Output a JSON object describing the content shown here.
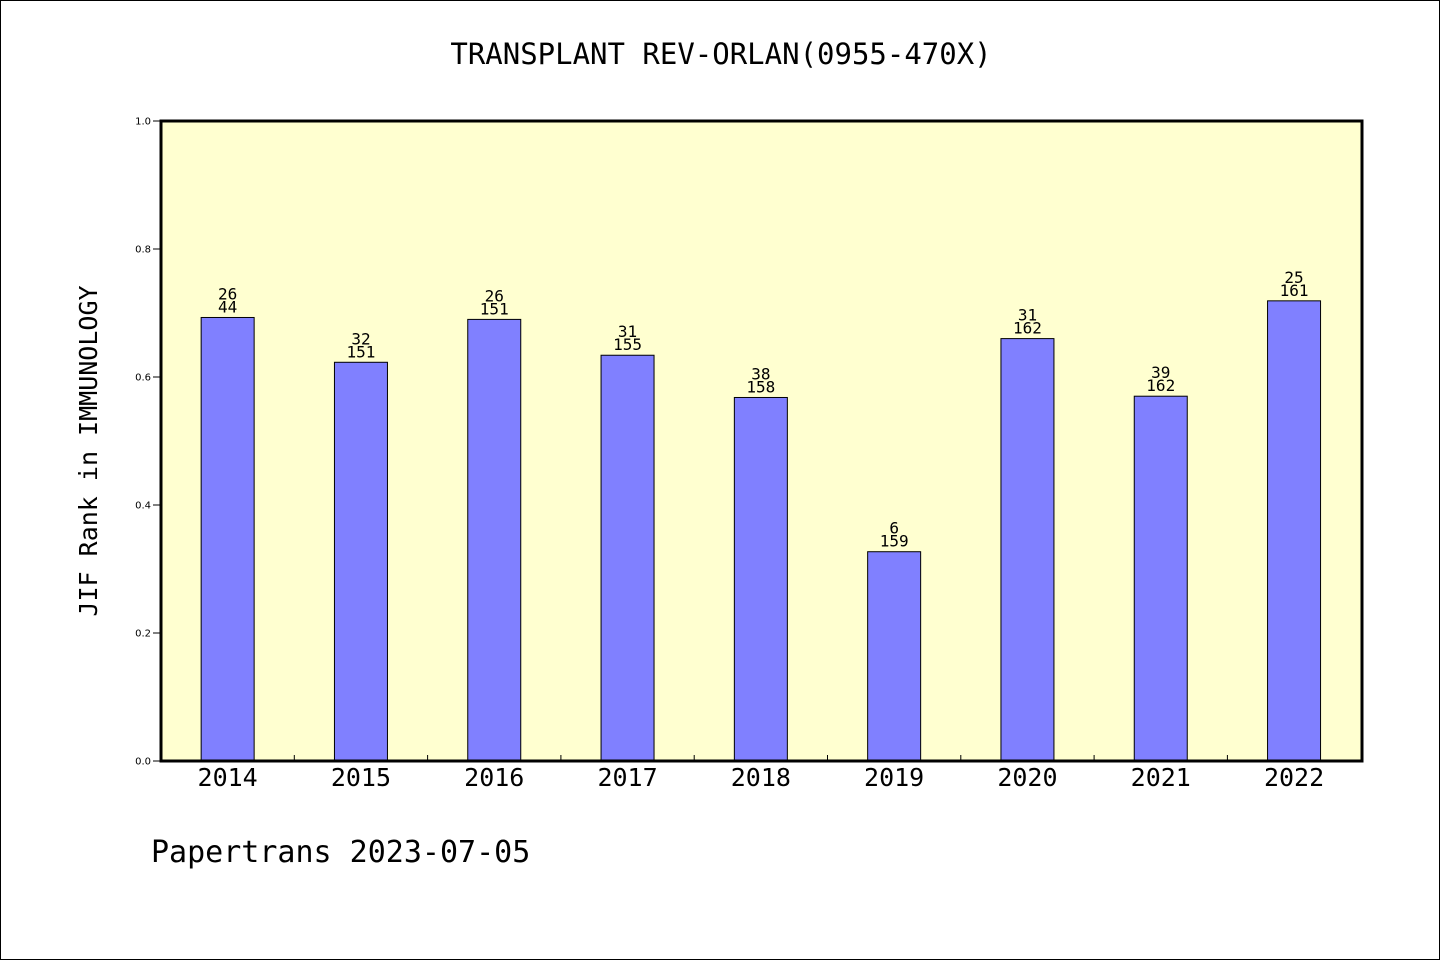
{
  "chart_data": {
    "type": "bar",
    "title": "TRANSPLANT REV-ORLAN(0955-470X)",
    "ylabel": "JIF Rank in IMMUNOLOGY",
    "xlabel": "",
    "ylim": [
      0,
      1.0
    ],
    "yticks": [
      "0.0",
      "0.2",
      "0.4",
      "0.6",
      "0.8",
      "1.0"
    ],
    "grid": false,
    "categories": [
      "2014",
      "2015",
      "2016",
      "2017",
      "2018",
      "2019",
      "2020",
      "2021",
      "2022"
    ],
    "values": [
      0.693,
      0.623,
      0.69,
      0.634,
      0.568,
      0.327,
      0.66,
      0.57,
      0.719
    ],
    "label_top": [
      "26",
      "32",
      "26",
      "31",
      "38",
      "6",
      "31",
      "39",
      "25"
    ],
    "label_bottom": [
      "44",
      "151",
      "151",
      "155",
      "158",
      "159",
      "162",
      "162",
      "161"
    ],
    "colors": {
      "bar": "#8080ff",
      "plot_bg": "#ffffd0",
      "axis": "#000000"
    }
  },
  "footer": "Papertrans 2023-07-05"
}
